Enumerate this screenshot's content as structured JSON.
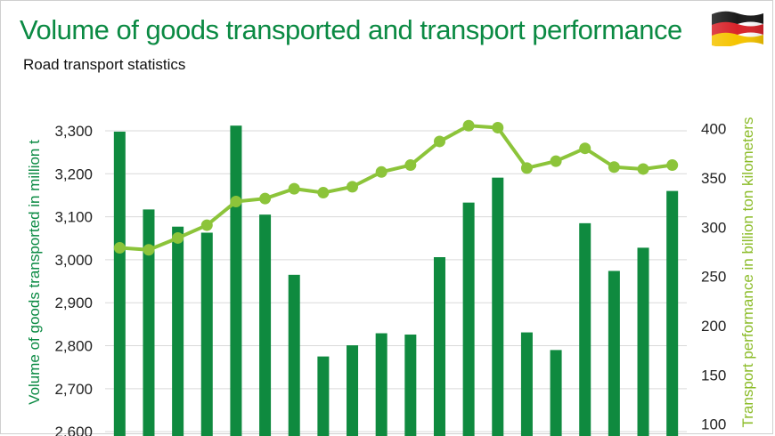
{
  "header": {
    "title": "Volume of goods transported and transport performance",
    "subtitle": "Road transport statistics",
    "flag": "germany-flag"
  },
  "colors": {
    "title": "#0b8a43",
    "bars": "#0f8a3f",
    "line": "#8cc43a",
    "right_axis": "#8cbc2a",
    "grid": "#d9d9d9"
  },
  "chart_data": {
    "type": "bar",
    "overlay_type": "line",
    "series": [
      {
        "name": "Volume of goods transported",
        "axis": "left",
        "values": [
          3298,
          3117,
          3077,
          3063,
          3312,
          3105,
          2965,
          2775,
          2801,
          2829,
          2826,
          3006,
          3133,
          3191,
          2831,
          2790,
          3085,
          2974,
          3028,
          3160
        ]
      },
      {
        "name": "Transport performance",
        "axis": "right",
        "values": [
          279,
          277,
          289,
          302,
          326,
          329,
          339,
          335,
          341,
          356,
          363,
          387,
          403,
          401,
          360,
          367,
          380,
          361,
          359,
          363
        ]
      }
    ],
    "ylabel_left": "Volume of goods transported in million t",
    "ylabel_right": "Transport performance in billion ton kilometers",
    "ylim_left": [
      2590,
      3360
    ],
    "yticks_left": [
      "3,300",
      "3,200",
      "3,100",
      "3,000",
      "2,900",
      "2,800",
      "2,700",
      "2,600"
    ],
    "yticks_left_values": [
      3300,
      3200,
      3100,
      3000,
      2900,
      2800,
      2700,
      2600
    ],
    "ylim_right": [
      88,
      424
    ],
    "yticks_right": [
      "400",
      "350",
      "300",
      "250",
      "200",
      "150",
      "100"
    ],
    "yticks_right_values": [
      400,
      350,
      300,
      250,
      200,
      150,
      100
    ],
    "grid": true,
    "legend": "none"
  }
}
